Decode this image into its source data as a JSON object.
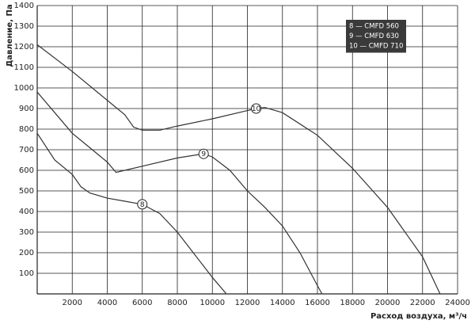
{
  "chart_data": {
    "type": "line",
    "xlabel": "Расход воздуха, м³/ч",
    "ylabel": "Давление, Па",
    "xlim": [
      0,
      24000
    ],
    "ylim": [
      0,
      1400
    ],
    "xticks": [
      2000,
      4000,
      6000,
      8000,
      10000,
      12000,
      14000,
      16000,
      18000,
      20000,
      22000,
      24000
    ],
    "yticks": [
      100,
      200,
      300,
      400,
      500,
      600,
      700,
      800,
      900,
      1000,
      1100,
      1200,
      1300,
      1400
    ],
    "grid": true,
    "legend": "upper right",
    "series": [
      {
        "name": "8 — CMFD 560",
        "label": "8",
        "label_x": 6000,
        "color": "#333333",
        "x": [
          0,
          1000,
          2000,
          2500,
          3000,
          4000,
          5000,
          6000,
          7000,
          8000,
          9000,
          10000,
          10800
        ],
        "values": [
          780,
          650,
          580,
          520,
          490,
          465,
          450,
          435,
          390,
          300,
          190,
          80,
          0
        ]
      },
      {
        "name": "9 — CMFD 630",
        "label": "9",
        "label_x": 9500,
        "color": "#333333",
        "x": [
          0,
          1000,
          2000,
          3000,
          4000,
          4500,
          5000,
          6000,
          8000,
          9500,
          10000,
          11000,
          12000,
          13000,
          14000,
          15000,
          16000,
          16260
        ],
        "values": [
          980,
          880,
          780,
          710,
          640,
          590,
          600,
          620,
          660,
          680,
          665,
          600,
          500,
          420,
          330,
          200,
          40,
          0
        ]
      },
      {
        "name": "10 — CMFD 710",
        "label": "10",
        "label_x": 12500,
        "color": "#333333",
        "x": [
          0,
          2000,
          4000,
          5000,
          5500,
          6000,
          7000,
          8000,
          10000,
          12000,
          12500,
          13000,
          14000,
          16000,
          18000,
          20000,
          22000,
          23000
        ],
        "values": [
          1210,
          1080,
          940,
          870,
          810,
          795,
          795,
          815,
          850,
          890,
          900,
          905,
          880,
          770,
          610,
          420,
          180,
          0
        ]
      }
    ]
  }
}
